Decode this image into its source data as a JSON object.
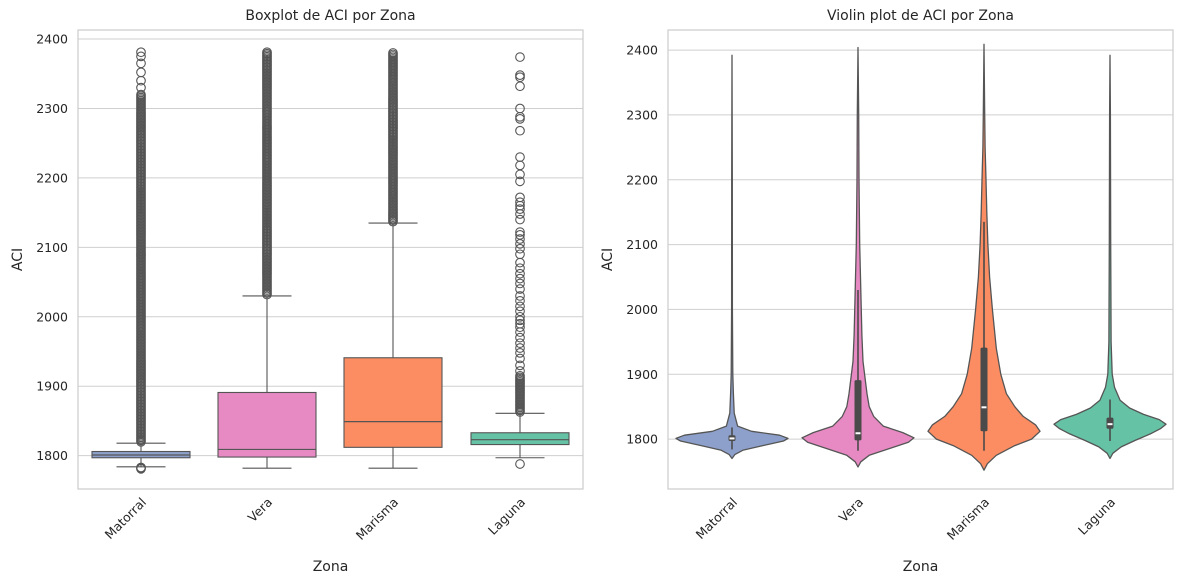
{
  "chart_data": [
    {
      "type": "boxplot",
      "title": "Boxplot de ACI por Zona",
      "xlabel": "Zona",
      "ylabel": "ACI",
      "categories": [
        "Matorral",
        "Vera",
        "Marisma",
        "Laguna"
      ],
      "colors": [
        "#8da0cb",
        "#e78ac3",
        "#fc8d62",
        "#66c2a5"
      ],
      "ylim": [
        1752,
        2413
      ],
      "yticks": [
        1800,
        1900,
        2000,
        2100,
        2200,
        2300,
        2400
      ],
      "grid": true,
      "boxes": [
        {
          "name": "Matorral",
          "whislo": 1784,
          "q1": 1797,
          "med": 1801,
          "q3": 1806,
          "whishi": 1818,
          "fliers_low": [
            1781,
            1782,
            1783
          ],
          "fliers_high_dense": [
            1820,
            2320
          ],
          "fliers_high": [
            2330,
            2340,
            2352,
            2365,
            2375,
            2381
          ]
        },
        {
          "name": "Vera",
          "whislo": 1782,
          "q1": 1798,
          "med": 1809,
          "q3": 1891,
          "whishi": 2030,
          "fliers_low": [],
          "fliers_high_dense": [
            2032,
            2381
          ],
          "fliers_high": []
        },
        {
          "name": "Marisma",
          "whislo": 1782,
          "q1": 1812,
          "med": 1849,
          "q3": 1941,
          "whishi": 2135,
          "fliers_low": [],
          "fliers_high_dense": [
            2137,
            2380
          ],
          "fliers_high": []
        },
        {
          "name": "Laguna",
          "whislo": 1797,
          "q1": 1816,
          "med": 1823,
          "q3": 1833,
          "whishi": 1861,
          "fliers_low": [
            1788
          ],
          "fliers_high_dense": [
            1863,
            1915
          ],
          "fliers_high": [
            1922,
            1930,
            1940,
            1948,
            1955,
            1962,
            1970,
            1978,
            1985,
            1990,
            1995,
            2000,
            2008,
            2015,
            2023,
            2030,
            2040,
            2048,
            2055,
            2062,
            2070,
            2078,
            2090,
            2098,
            2105,
            2112,
            2118,
            2122,
            2140,
            2148,
            2155,
            2160,
            2165,
            2172,
            2195,
            2205,
            2218,
            2230,
            2268,
            2285,
            2288,
            2300,
            2332,
            2345,
            2348,
            2374
          ]
        }
      ]
    },
    {
      "type": "violin",
      "title": "Violin plot de ACI por Zona",
      "xlabel": "Zona",
      "ylabel": "ACI",
      "categories": [
        "Matorral",
        "Vera",
        "Marisma",
        "Laguna"
      ],
      "colors": [
        "#8da0cb",
        "#e78ac3",
        "#fc8d62",
        "#66c2a5"
      ],
      "ylim": [
        1723,
        2431
      ],
      "yticks": [
        1800,
        1900,
        2000,
        2100,
        2200,
        2300,
        2400
      ],
      "grid": true,
      "violins": [
        {
          "name": "Matorral",
          "profile": [
            [
              1770,
              0
            ],
            [
              1776,
              0.05
            ],
            [
              1783,
              0.2
            ],
            [
              1790,
              0.55
            ],
            [
              1797,
              0.92
            ],
            [
              1801,
              1.0
            ],
            [
              1806,
              0.85
            ],
            [
              1812,
              0.35
            ],
            [
              1820,
              0.1
            ],
            [
              1840,
              0.04
            ],
            [
              1870,
              0.025
            ],
            [
              1900,
              0.015
            ],
            [
              2000,
              0.008
            ],
            [
              2200,
              0.006
            ],
            [
              2392,
              0
            ]
          ],
          "q1": 1797,
          "med": 1801,
          "q3": 1806,
          "whislo": 1784,
          "whishi": 1818
        },
        {
          "name": "Vera",
          "profile": [
            [
              1757,
              0
            ],
            [
              1765,
              0.05
            ],
            [
              1775,
              0.2
            ],
            [
              1785,
              0.55
            ],
            [
              1795,
              0.9
            ],
            [
              1802,
              1.0
            ],
            [
              1810,
              0.8
            ],
            [
              1820,
              0.45
            ],
            [
              1835,
              0.28
            ],
            [
              1850,
              0.2
            ],
            [
              1870,
              0.16
            ],
            [
              1891,
              0.13
            ],
            [
              1920,
              0.09
            ],
            [
              1960,
              0.07
            ],
            [
              2030,
              0.05
            ],
            [
              2100,
              0.03
            ],
            [
              2200,
              0.018
            ],
            [
              2300,
              0.012
            ],
            [
              2404,
              0
            ]
          ],
          "q1": 1798,
          "med": 1809,
          "q3": 1891,
          "whislo": 1782,
          "whishi": 2030
        },
        {
          "name": "Marisma",
          "profile": [
            [
              1752,
              0
            ],
            [
              1762,
              0.06
            ],
            [
              1775,
              0.22
            ],
            [
              1790,
              0.55
            ],
            [
              1800,
              0.85
            ],
            [
              1812,
              1.0
            ],
            [
              1822,
              0.92
            ],
            [
              1835,
              0.7
            ],
            [
              1850,
              0.55
            ],
            [
              1870,
              0.4
            ],
            [
              1900,
              0.3
            ],
            [
              1940,
              0.22
            ],
            [
              2000,
              0.15
            ],
            [
              2050,
              0.1
            ],
            [
              2100,
              0.07
            ],
            [
              2150,
              0.05
            ],
            [
              2200,
              0.035
            ],
            [
              2250,
              0.02
            ],
            [
              2300,
              0.012
            ],
            [
              2409,
              0
            ]
          ],
          "q1": 1812,
          "med": 1849,
          "q3": 1941,
          "whislo": 1782,
          "whishi": 2135
        },
        {
          "name": "Laguna",
          "profile": [
            [
              1770,
              0
            ],
            [
              1778,
              0.05
            ],
            [
              1788,
              0.2
            ],
            [
              1798,
              0.45
            ],
            [
              1808,
              0.72
            ],
            [
              1816,
              0.9
            ],
            [
              1823,
              1.0
            ],
            [
              1830,
              0.88
            ],
            [
              1838,
              0.6
            ],
            [
              1848,
              0.35
            ],
            [
              1860,
              0.18
            ],
            [
              1880,
              0.08
            ],
            [
              1900,
              0.04
            ],
            [
              1950,
              0.02
            ],
            [
              2100,
              0.012
            ],
            [
              2300,
              0.008
            ],
            [
              2392,
              0
            ]
          ],
          "q1": 1816,
          "med": 1823,
          "q3": 1833,
          "whislo": 1797,
          "whishi": 1861
        }
      ]
    }
  ]
}
